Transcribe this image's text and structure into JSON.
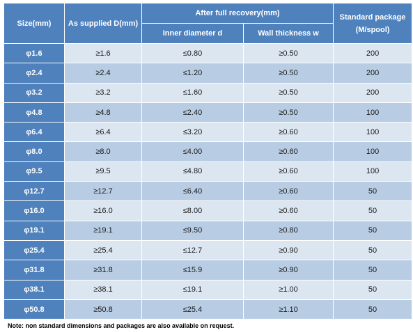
{
  "header": {
    "size": "Size(mm)",
    "as_supplied": "As supplied D(mm)",
    "after_recovery": "After full recovery(mm)",
    "inner_diameter": "Inner diameter d",
    "wall_thickness": "Wall thickness w",
    "standard_package_line1": "Standard package",
    "standard_package_line2": "(M/spool)"
  },
  "rows": [
    {
      "size": "φ1.6",
      "as_supplied": "≥1.6",
      "inner_diameter": "≤0.80",
      "wall_thickness": "≥0.50",
      "package": "200"
    },
    {
      "size": "φ2.4",
      "as_supplied": "≥2.4",
      "inner_diameter": "≤1.20",
      "wall_thickness": "≥0.50",
      "package": "200"
    },
    {
      "size": "φ3.2",
      "as_supplied": "≥3.2",
      "inner_diameter": "≤1.60",
      "wall_thickness": "≥0.50",
      "package": "200"
    },
    {
      "size": "φ4.8",
      "as_supplied": "≥4.8",
      "inner_diameter": "≤2.40",
      "wall_thickness": "≥0.50",
      "package": "100"
    },
    {
      "size": "φ6.4",
      "as_supplied": "≥6.4",
      "inner_diameter": "≤3.20",
      "wall_thickness": "≥0.60",
      "package": "100"
    },
    {
      "size": "φ8.0",
      "as_supplied": "≥8.0",
      "inner_diameter": "≤4.00",
      "wall_thickness": "≥0.60",
      "package": "100"
    },
    {
      "size": "φ9.5",
      "as_supplied": "≥9.5",
      "inner_diameter": "≤4.80",
      "wall_thickness": "≥0.60",
      "package": "100"
    },
    {
      "size": "φ12.7",
      "as_supplied": "≥12.7",
      "inner_diameter": "≤6.40",
      "wall_thickness": "≥0.60",
      "package": "50"
    },
    {
      "size": "φ16.0",
      "as_supplied": "≥16.0",
      "inner_diameter": "≤8.00",
      "wall_thickness": "≥0.60",
      "package": "50"
    },
    {
      "size": "φ19.1",
      "as_supplied": "≥19.1",
      "inner_diameter": "≤9.50",
      "wall_thickness": "≥0.80",
      "package": "50"
    },
    {
      "size": "φ25.4",
      "as_supplied": "≥25.4",
      "inner_diameter": "≤12.7",
      "wall_thickness": "≥0.90",
      "package": "50"
    },
    {
      "size": "φ31.8",
      "as_supplied": "≥31.8",
      "inner_diameter": "≤15.9",
      "wall_thickness": "≥0.90",
      "package": "50"
    },
    {
      "size": "φ38.1",
      "as_supplied": "≥38.1",
      "inner_diameter": "≤19.1",
      "wall_thickness": "≥1.00",
      "package": "50"
    },
    {
      "size": "φ50.8",
      "as_supplied": "≥50.8",
      "inner_diameter": "≤25.4",
      "wall_thickness": "≥1.10",
      "package": "50"
    }
  ],
  "note": "Note: non standard dimensions and packages are also available on request.",
  "colors": {
    "header_blue": "#4f81bd",
    "row_light": "#dce6f1",
    "row_dark": "#b8cce4"
  }
}
